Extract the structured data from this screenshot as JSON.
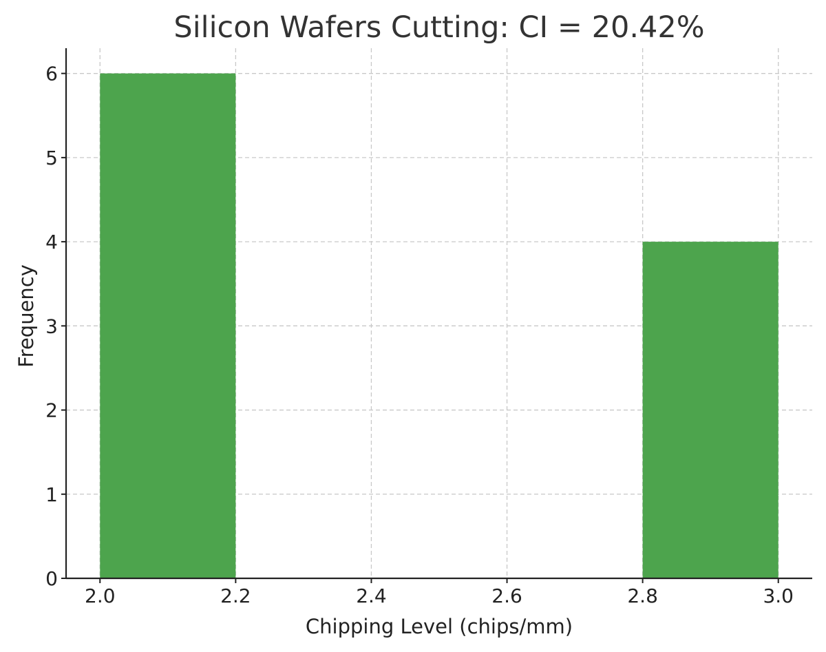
{
  "chart_data": {
    "type": "bar",
    "title": "Silicon Wafers Cutting: CI = 20.42%",
    "xlabel": "Chipping Level (chips/mm)",
    "ylabel": "Frequency",
    "xlim": [
      1.95,
      3.05
    ],
    "ylim": [
      0,
      6.3
    ],
    "x_ticks": [
      "2.0",
      "2.2",
      "2.4",
      "2.6",
      "2.8",
      "3.0"
    ],
    "y_ticks": [
      "0",
      "1",
      "2",
      "3",
      "4",
      "5",
      "6"
    ],
    "grid": true,
    "bar_color": "#4da44d",
    "bins": [
      {
        "x0": 2.0,
        "x1": 2.2,
        "count": 6
      },
      {
        "x0": 2.8,
        "x1": 3.0,
        "count": 4
      }
    ]
  }
}
